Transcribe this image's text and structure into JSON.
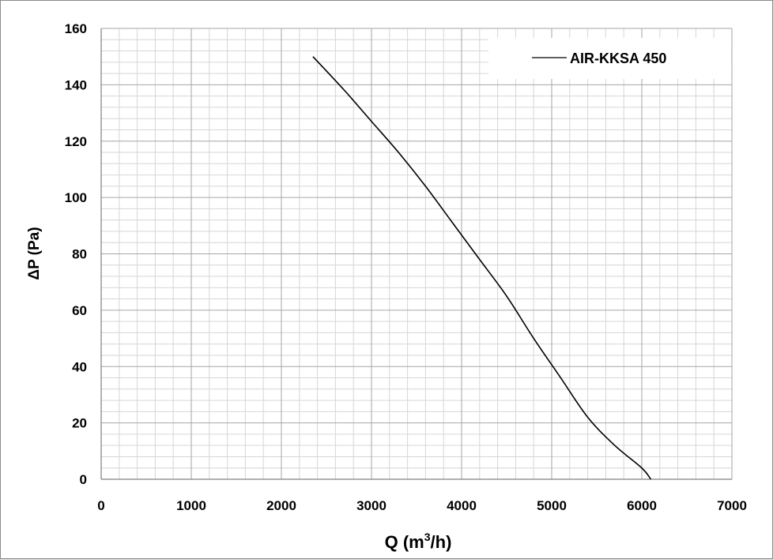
{
  "chart_data": {
    "type": "line",
    "xlabel_main": "Q (m",
    "xlabel_sup": "3",
    "xlabel_end": "/h)",
    "ylabel": "ΔP (Pa)",
    "xlim": [
      0,
      7000
    ],
    "ylim": [
      0,
      160
    ],
    "x_ticks": [
      "0",
      "1000",
      "2000",
      "3000",
      "4000",
      "5000",
      "6000",
      "7000"
    ],
    "y_ticks": [
      "0",
      "20",
      "40",
      "60",
      "80",
      "100",
      "120",
      "140",
      "160"
    ],
    "grid": true,
    "legend_position": "top-right",
    "series": [
      {
        "name": "AIR-KKSA 450",
        "color": "#000000",
        "x": [
          2350,
          2700,
          3000,
          3300,
          3600,
          3900,
          4200,
          4500,
          4800,
          5100,
          5400,
          5700,
          6000,
          6100
        ],
        "y": [
          150,
          138,
          127,
          116,
          104,
          91,
          78,
          65,
          50,
          36,
          22,
          12,
          4,
          0
        ]
      }
    ]
  }
}
